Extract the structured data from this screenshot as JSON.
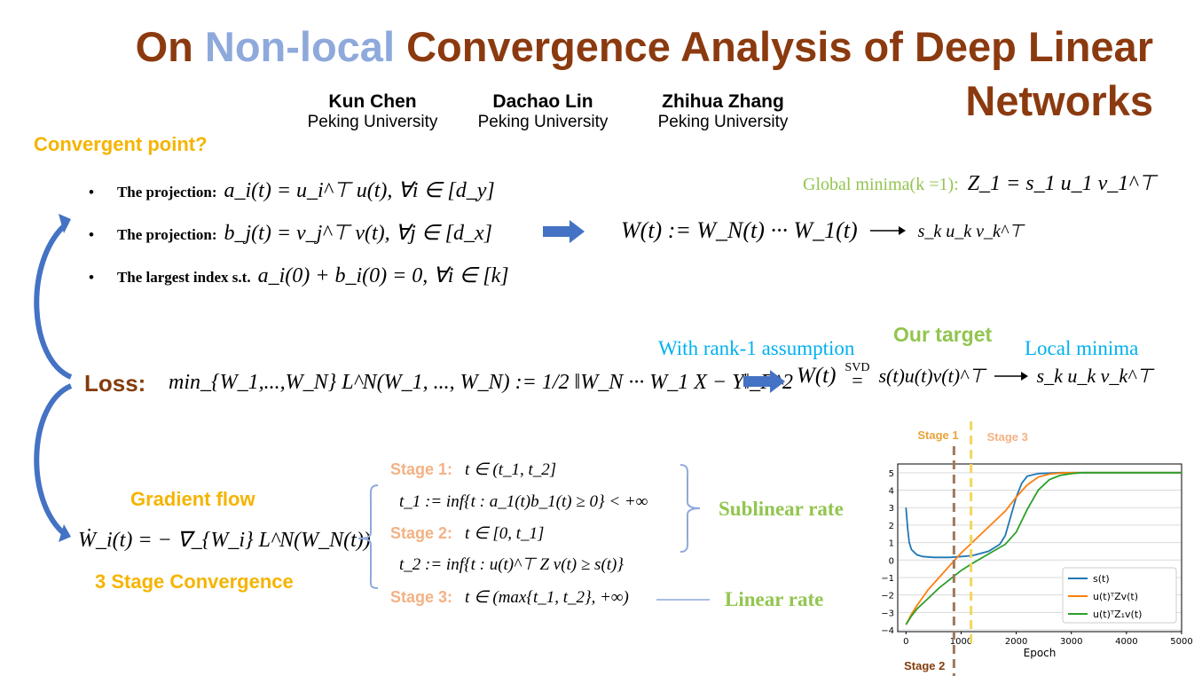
{
  "title": {
    "part1": "On ",
    "part2": "Non-local",
    "part3": " Convergence Analysis of Deep Linear",
    "part4": "Networks"
  },
  "authors": [
    {
      "name": "Kun Chen",
      "affiliation": "Peking University"
    },
    {
      "name": "Dachao Lin",
      "affiliation": "Peking University"
    },
    {
      "name": "Zhihua Zhang",
      "affiliation": "Peking University"
    }
  ],
  "convergent_point": {
    "heading": "Convergent point?",
    "bullet1_label": "The projection:",
    "bullet1_math": "a_i(t) = u_i^⊤ u(t), ∀i ∈ [d_y]",
    "bullet2_label": "The projection:",
    "bullet2_math": "b_j(t) = v_j^⊤ v(t), ∀j ∈ [d_x]",
    "bullet3_label": "The largest index s.t.",
    "bullet3_math": "a_i(0) + b_i(0) = 0, ∀i ∈ [k]",
    "global_minima_label": "Global minima(k =1):",
    "global_minima_math": "Z_1 = s_1 u_1 v_1^⊤",
    "w_product": "W(t) := W_N(t) ··· W_1(t)",
    "w_limit": "s_k u_k v_k^⊤"
  },
  "loss": {
    "label": "Loss:",
    "objective": "min_{W_1,...,W_N} L^N(W_1, ..., W_N) := 1/2 ‖W_N ··· W_1 X − Y‖_F^2",
    "rank1_label": "With rank-1 assumption",
    "target_label": "Our target",
    "local_minima_label": "Local minima",
    "svd_label": "SVD",
    "svd_lhs": "W(t)",
    "svd_rhs": "s(t)u(t)v(t)^⊤",
    "limit": "s_k u_k v_k^⊤"
  },
  "gradient": {
    "flow_label": "Gradient flow",
    "flow_math": "Ẇ_i(t) = − ∇_{W_i} L^N(W_N(t))",
    "three_stage_label": "3 Stage Convergence"
  },
  "stages": {
    "stage1_label": "Stage 1:",
    "stage1_math": "t ∈ (t_1, t_2]",
    "t1_def": "t_1 := inf{t : a_1(t)b_1(t) ≥ 0} < +∞",
    "stage2_label": "Stage 2:",
    "stage2_math": "t ∈ [0, t_1]",
    "t2_def": "t_2 := inf{t : u(t)^⊤ Z v(t) ≥ s(t)}",
    "stage3_label": "Stage 3:",
    "stage3_math": "t ∈ (max{t_1, t_2}, +∞)",
    "sublinear_label": "Sublinear rate",
    "linear_label": "Linear rate"
  },
  "chart_data": {
    "type": "line",
    "xlabel": "Epoch",
    "ylabel": "",
    "xlim": [
      -150,
      5000
    ],
    "ylim": [
      -4.1,
      5.5
    ],
    "x_ticks": [
      0,
      1000,
      2000,
      3000,
      4000,
      5000
    ],
    "y_ticks": [
      -4,
      -3,
      -2,
      -1,
      0,
      1,
      2,
      3,
      4,
      5
    ],
    "grid": "horizontal",
    "legend_placement": "lower-right",
    "stage_lines": [
      {
        "label": "Stage 1",
        "x": 1180,
        "color": "#F2D65A",
        "label_color": "#E8A33C"
      },
      {
        "label": "Stage 2",
        "x": 870,
        "color": "#A0785A",
        "label_color": "#843C0C"
      },
      {
        "label": "Stage 3",
        "x": 1180,
        "color": "#F2D65A",
        "label_color": "#F4B183"
      }
    ],
    "series": [
      {
        "name": "s(t)",
        "color": "#1F77B4",
        "x": [
          0,
          30,
          60,
          100,
          200,
          300,
          500,
          800,
          1200,
          1500,
          1700,
          1800,
          1900,
          2000,
          2100,
          2200,
          2400,
          2800,
          3500,
          5000
        ],
        "y": [
          3.0,
          1.8,
          1.0,
          0.6,
          0.3,
          0.2,
          0.15,
          0.15,
          0.25,
          0.5,
          0.9,
          1.4,
          2.5,
          3.6,
          4.4,
          4.8,
          4.95,
          5.0,
          5.0,
          5.0
        ]
      },
      {
        "name": "u(t)ᵀZv(t)",
        "color": "#FF7F0E",
        "x": [
          0,
          100,
          200,
          400,
          600,
          800,
          1000,
          1200,
          1500,
          1800,
          2000,
          2200,
          2400,
          2600,
          2800,
          3000,
          3500,
          5000
        ],
        "y": [
          -3.7,
          -3.1,
          -2.6,
          -1.7,
          -1.0,
          -0.3,
          0.4,
          1.0,
          1.9,
          2.8,
          3.6,
          4.3,
          4.75,
          4.92,
          4.98,
          5.0,
          5.0,
          5.0
        ]
      },
      {
        "name": "u(t)ᵀZ₁v(t)",
        "color": "#2CA02C",
        "x": [
          0,
          100,
          200,
          400,
          600,
          800,
          1000,
          1200,
          1500,
          1800,
          2000,
          2200,
          2400,
          2600,
          2800,
          3000,
          3200,
          3500,
          5000
        ],
        "y": [
          -3.7,
          -3.2,
          -2.8,
          -2.2,
          -1.6,
          -1.1,
          -0.6,
          -0.2,
          0.35,
          0.9,
          1.6,
          2.9,
          4.0,
          4.6,
          4.85,
          4.95,
          5.0,
          5.0,
          5.0
        ]
      }
    ]
  }
}
